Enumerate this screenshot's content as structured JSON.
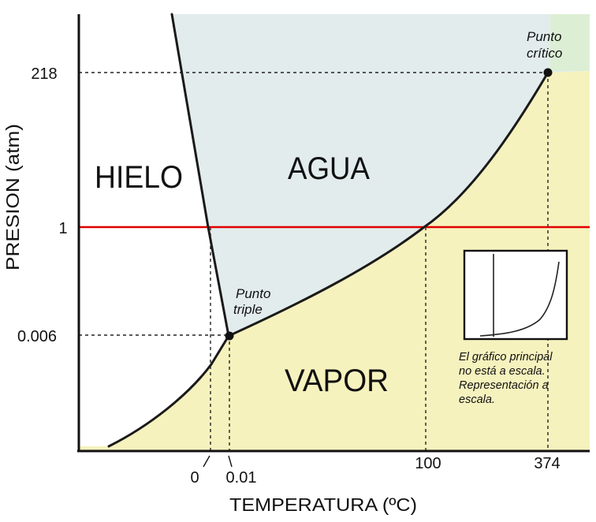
{
  "regions": {
    "ice": "HIELO",
    "water": "AGUA",
    "vapor": "VAPOR"
  },
  "axes": {
    "x_label": "TEMPERATURA (ºC)",
    "y_label": "PRESION (atm)",
    "x_ticks": [
      "0",
      "0.01",
      "100",
      "374"
    ],
    "y_ticks": [
      "218",
      "1",
      "0.006"
    ]
  },
  "points": {
    "triple_line1": "Punto",
    "triple_line2": "triple",
    "critical_line1": "Punto",
    "critical_line2": "crítico"
  },
  "inset_note": [
    "El gráfico principal",
    "no está a escala.",
    "Representación a",
    "escala."
  ],
  "colors": {
    "water": "#e2ecec",
    "vapor": "#f6f2be",
    "supercritical": "#dcefd4",
    "reference_line": "#e00000",
    "curve": "#1a1a1a"
  }
}
